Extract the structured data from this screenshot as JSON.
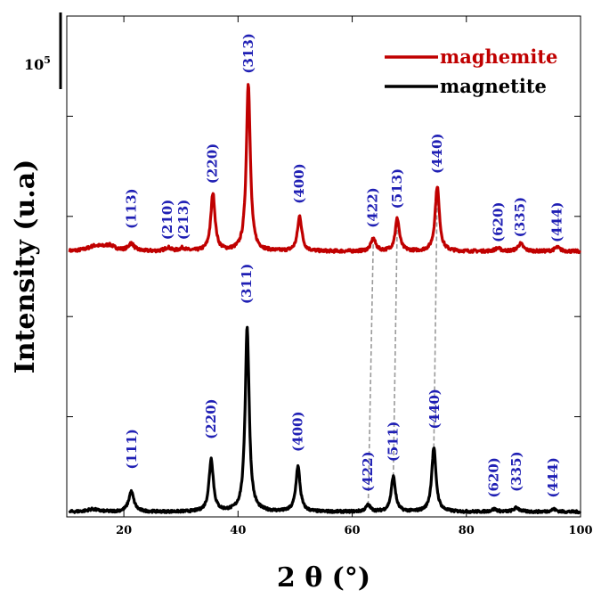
{
  "chart_data": {
    "type": "line",
    "xlabel": "2 θ (°)",
    "ylabel": "Intensity (u.a)",
    "xlim": [
      10,
      100
    ],
    "ylim": [
      0,
      100
    ],
    "x_ticks": [
      20,
      40,
      60,
      80,
      100
    ],
    "y_ticks": [
      20,
      40,
      60,
      80
    ],
    "legend_position": "top-right",
    "scale_bar_label": "10",
    "scale_bar_exponent": "5",
    "series": [
      {
        "name": "maghemite",
        "color": "#c00000",
        "baseline": 53,
        "noise": 0.6,
        "peaks": [
          {
            "x": 15.0,
            "h": 1.0,
            "w": 1.6
          },
          {
            "x": 17.5,
            "h": 1.0,
            "w": 1.2
          },
          {
            "x": 21.3,
            "h": 1.5,
            "w": 0.6
          },
          {
            "x": 27.7,
            "h": 0.7,
            "w": 0.6
          },
          {
            "x": 30.3,
            "h": 0.6,
            "w": 0.6
          },
          {
            "x": 35.6,
            "h": 11.5,
            "w": 0.45
          },
          {
            "x": 41.8,
            "h": 33.5,
            "w": 0.42
          },
          {
            "x": 50.8,
            "h": 7.0,
            "w": 0.45
          },
          {
            "x": 63.7,
            "h": 2.5,
            "w": 0.5
          },
          {
            "x": 67.9,
            "h": 6.5,
            "w": 0.45
          },
          {
            "x": 74.9,
            "h": 13.0,
            "w": 0.45
          },
          {
            "x": 85.5,
            "h": 0.6,
            "w": 0.6
          },
          {
            "x": 89.5,
            "h": 1.5,
            "w": 0.6
          },
          {
            "x": 95.9,
            "h": 0.8,
            "w": 0.6
          }
        ],
        "labels": [
          {
            "text": "(113)",
            "x": 21.3,
            "y": 57.5
          },
          {
            "text": "(210)",
            "x": 27.6,
            "y": 55.3
          },
          {
            "text": "(213)",
            "x": 30.4,
            "y": 55.3
          },
          {
            "text": "(220)",
            "x": 35.5,
            "y": 66.5
          },
          {
            "text": "(313)",
            "x": 41.8,
            "y": 88.5
          },
          {
            "text": "(400)",
            "x": 50.7,
            "y": 62.5
          },
          {
            "text": "(422)",
            "x": 63.6,
            "y": 57.7
          },
          {
            "text": "(513)",
            "x": 67.9,
            "y": 61.5
          },
          {
            "text": "(440)",
            "x": 74.9,
            "y": 68.5
          },
          {
            "text": "(620)",
            "x": 85.6,
            "y": 54.8
          },
          {
            "text": "(335)",
            "x": 89.4,
            "y": 55.8
          },
          {
            "text": "(444)",
            "x": 95.9,
            "y": 54.8
          }
        ]
      },
      {
        "name": "magnetite",
        "color": "#000000",
        "baseline": 1.0,
        "noise": 0.5,
        "peaks": [
          {
            "x": 14.5,
            "h": 0.5,
            "w": 1.2
          },
          {
            "x": 21.3,
            "h": 4.0,
            "w": 0.55
          },
          {
            "x": 35.3,
            "h": 10.5,
            "w": 0.45
          },
          {
            "x": 41.6,
            "h": 37.0,
            "w": 0.42
          },
          {
            "x": 50.5,
            "h": 9.0,
            "w": 0.45
          },
          {
            "x": 62.8,
            "h": 1.3,
            "w": 0.5
          },
          {
            "x": 67.2,
            "h": 7.0,
            "w": 0.45
          },
          {
            "x": 74.3,
            "h": 12.8,
            "w": 0.45
          },
          {
            "x": 84.9,
            "h": 0.5,
            "w": 0.6
          },
          {
            "x": 88.8,
            "h": 0.8,
            "w": 0.6
          },
          {
            "x": 95.3,
            "h": 0.5,
            "w": 0.6
          }
        ],
        "labels": [
          {
            "text": "(111)",
            "x": 21.4,
            "y": 9.5
          },
          {
            "text": "(220)",
            "x": 35.3,
            "y": 15.5
          },
          {
            "text": "(311)",
            "x": 41.5,
            "y": 42.5
          },
          {
            "text": "(400)",
            "x": 50.5,
            "y": 13.0
          },
          {
            "text": "(422)",
            "x": 62.7,
            "y": 5.0
          },
          {
            "text": "(511)",
            "x": 67.2,
            "y": 11.0
          },
          {
            "text": "(440)",
            "x": 74.4,
            "y": 17.5
          },
          {
            "text": "(620)",
            "x": 84.8,
            "y": 3.8
          },
          {
            "text": "(335)",
            "x": 88.8,
            "y": 5.0
          },
          {
            "text": "(444)",
            "x": 95.2,
            "y": 3.8
          }
        ]
      }
    ],
    "guide_lines": [
      {
        "x1": 62.8,
        "y1": 2.3,
        "x2": 63.7,
        "y2": 55.5
      },
      {
        "x1": 67.2,
        "y1": 8.0,
        "x2": 67.9,
        "y2": 59.5
      },
      {
        "x1": 74.3,
        "y1": 13.8,
        "x2": 74.9,
        "y2": 66.0
      }
    ]
  }
}
